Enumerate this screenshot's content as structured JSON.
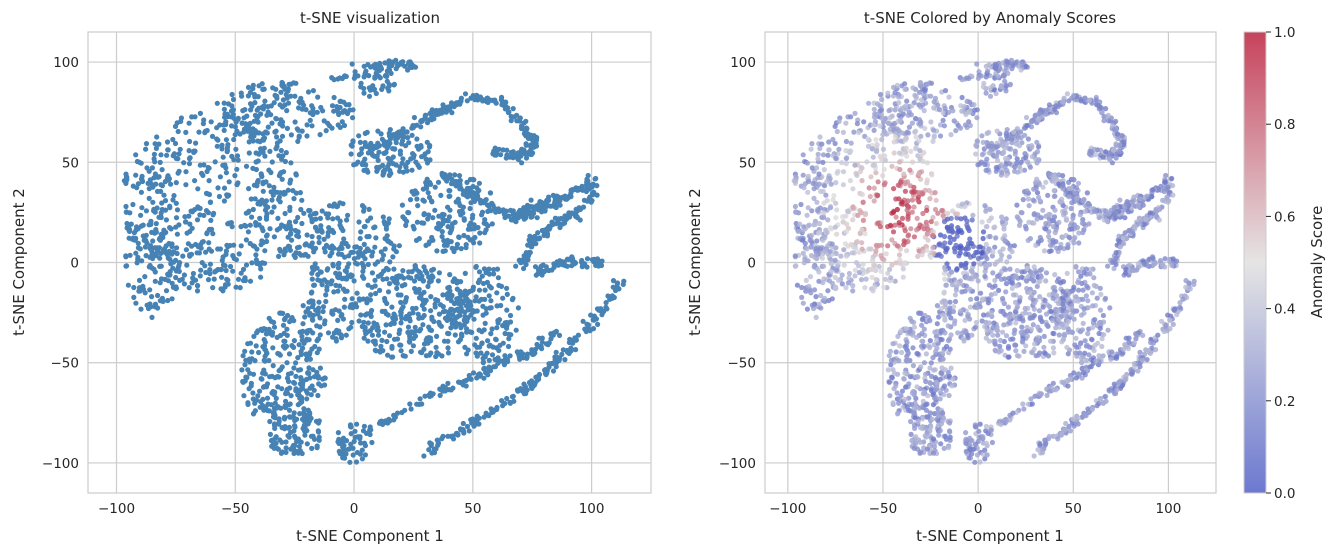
{
  "chart_data": [
    {
      "type": "scatter",
      "title": "t-SNE visualization",
      "xlabel": "t-SNE Component 1",
      "ylabel": "t-SNE Component 2",
      "xlim": [
        -112,
        125
      ],
      "ylim": [
        -115,
        115
      ],
      "xticks": [
        -100,
        -50,
        0,
        50,
        100
      ],
      "yticks": [
        -100,
        -50,
        0,
        50,
        100
      ],
      "xtick_labels": [
        "−100",
        "−50",
        "0",
        "50",
        "100"
      ],
      "ytick_labels": [
        "−100",
        "−50",
        "0",
        "50",
        "100"
      ],
      "grid": true,
      "point_color": "#4682b4",
      "clusters": [
        {
          "cx": -60,
          "cy": 30,
          "rx": 38,
          "ry": 45,
          "n": 520
        },
        {
          "cx": -30,
          "cy": 75,
          "rx": 30,
          "ry": 15,
          "n": 180
        },
        {
          "cx": -30,
          "cy": -55,
          "rx": 18,
          "ry": 30,
          "n": 260
        },
        {
          "cx": -25,
          "cy": -85,
          "rx": 12,
          "ry": 12,
          "n": 90
        },
        {
          "cx": -5,
          "cy": 10,
          "rx": 25,
          "ry": 20,
          "n": 200
        },
        {
          "cx": 25,
          "cy": -25,
          "rx": 25,
          "ry": 25,
          "n": 300
        },
        {
          "cx": 40,
          "cy": 25,
          "rx": 20,
          "ry": 20,
          "n": 180
        },
        {
          "cx": 55,
          "cy": -25,
          "rx": 15,
          "ry": 25,
          "n": 140
        },
        {
          "cx": 15,
          "cy": 55,
          "rx": 18,
          "ry": 12,
          "n": 120
        },
        {
          "cx": -85,
          "cy": 0,
          "rx": 12,
          "ry": 28,
          "n": 120
        },
        {
          "cx": 0,
          "cy": -90,
          "rx": 8,
          "ry": 10,
          "n": 50
        },
        {
          "cx": 10,
          "cy": 90,
          "rx": 8,
          "ry": 8,
          "n": 40
        },
        {
          "cx": -10,
          "cy": -20,
          "rx": 12,
          "ry": 20,
          "n": 100
        }
      ],
      "curves": [
        {
          "points": [
            [
              30,
              70
            ],
            [
              50,
              83
            ],
            [
              62,
              80
            ],
            [
              70,
              70
            ],
            [
              76,
              60
            ],
            [
              74,
              55
            ],
            [
              68,
              53
            ],
            [
              58,
              55
            ]
          ],
          "n": 140
        },
        {
          "points": [
            [
              5,
              55
            ],
            [
              20,
              65
            ],
            [
              35,
              75
            ],
            [
              50,
              83
            ]
          ],
          "n": 80
        },
        {
          "points": [
            [
              35,
              45
            ],
            [
              55,
              30
            ],
            [
              70,
              22
            ],
            [
              82,
              28
            ],
            [
              92,
              35
            ],
            [
              103,
              42
            ]
          ],
          "n": 120
        },
        {
          "points": [
            [
              66,
              20
            ],
            [
              75,
              28
            ],
            [
              85,
              33
            ]
          ],
          "n": 40
        },
        {
          "points": [
            [
              70,
              -5
            ],
            [
              75,
              10
            ],
            [
              85,
              20
            ],
            [
              95,
              25
            ],
            [
              103,
              40
            ]
          ],
          "n": 100
        },
        {
          "points": [
            [
              75,
              -5
            ],
            [
              90,
              0
            ],
            [
              105,
              0
            ]
          ],
          "n": 60
        },
        {
          "points": [
            [
              30,
              -95
            ],
            [
              50,
              -80
            ],
            [
              70,
              -65
            ],
            [
              85,
              -50
            ],
            [
              100,
              -30
            ],
            [
              112,
              -10
            ]
          ],
          "n": 180
        },
        {
          "points": [
            [
              5,
              -85
            ],
            [
              25,
              -70
            ],
            [
              45,
              -60
            ],
            [
              60,
              -50
            ],
            [
              75,
              -45
            ],
            [
              85,
              -35
            ]
          ],
          "n": 120
        },
        {
          "points": [
            [
              -10,
              90
            ],
            [
              5,
              97
            ],
            [
              15,
              100
            ],
            [
              25,
              98
            ]
          ],
          "n": 50
        }
      ]
    },
    {
      "type": "scatter",
      "title": "t-SNE Colored by Anomaly Scores",
      "xlabel": "t-SNE Component 1",
      "ylabel": "t-SNE Component 2",
      "xlim": [
        -112,
        125
      ],
      "ylim": [
        -115,
        115
      ],
      "xticks": [
        -100,
        -50,
        0,
        50,
        100
      ],
      "yticks": [
        -100,
        -50,
        0,
        50,
        100
      ],
      "xtick_labels": [
        "−100",
        "−50",
        "0",
        "50",
        "100"
      ],
      "ytick_labels": [
        "−100",
        "−50",
        "0",
        "50",
        "100"
      ],
      "grid": true,
      "colormap": "coolwarm",
      "colorbar": {
        "label": "Anomaly Score",
        "range": [
          0.0,
          1.0
        ],
        "ticks": [
          0.0,
          0.2,
          0.4,
          0.6,
          0.8,
          1.0
        ],
        "tick_labels": [
          "0.0",
          "0.2",
          "0.4",
          "0.6",
          "0.8",
          "1.0"
        ],
        "low_color": "#3b4cc0",
        "mid_color": "#dddcdc",
        "high_color": "#b40426"
      }
    }
  ]
}
